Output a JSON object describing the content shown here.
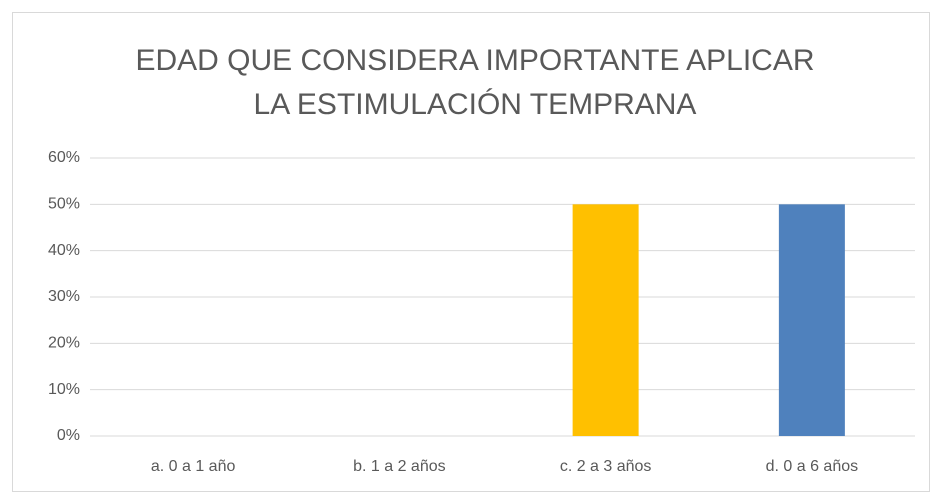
{
  "chart_data": {
    "type": "bar",
    "title": [
      "EDAD QUE CONSIDERA IMPORTANTE APLICAR",
      "LA ESTIMULACIÓN TEMPRANA"
    ],
    "categories": [
      "a. 0 a 1 año",
      "b. 1 a 2 años",
      "c. 2 a 3 años",
      "d. 0 a 6 años"
    ],
    "values": [
      0,
      0,
      50,
      50
    ],
    "colors": [
      null,
      null,
      "#ffc000",
      "#4f81bd"
    ],
    "ylim": [
      0,
      60
    ],
    "yticks": [
      {
        "value": 0,
        "label": "0%"
      },
      {
        "value": 10,
        "label": "10%"
      },
      {
        "value": 20,
        "label": "20%"
      },
      {
        "value": 30,
        "label": "30%"
      },
      {
        "value": 40,
        "label": "40%"
      },
      {
        "value": 50,
        "label": "50%"
      },
      {
        "value": 60,
        "label": "60%"
      }
    ],
    "grid": true
  }
}
